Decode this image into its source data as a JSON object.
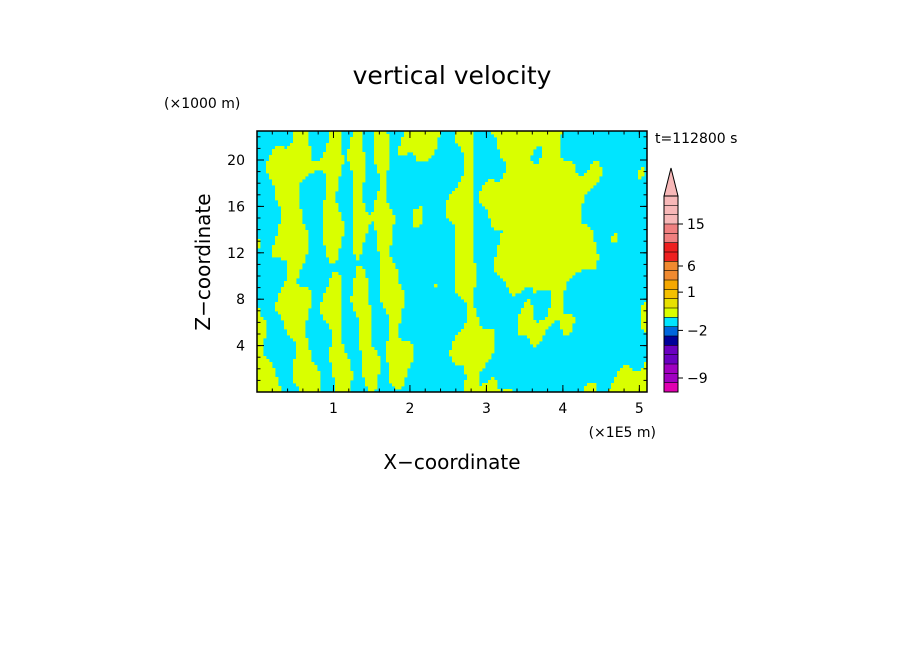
{
  "chart_data": {
    "type": "heatmap",
    "title": "vertical velocity",
    "xlabel": "X−coordinate",
    "ylabel": "Z−coordinate",
    "x_unit": "(×1E5 m)",
    "y_unit": "(×1000 m)",
    "time_label": "t=112800 s",
    "xlim": [
      0,
      5.1
    ],
    "ylim": [
      0,
      22.5
    ],
    "x_ticks": [
      1,
      2,
      3,
      4,
      5
    ],
    "y_ticks": [
      4,
      8,
      12,
      16,
      20
    ],
    "x_tick_labels": [
      "1",
      "2",
      "3",
      "4",
      "5"
    ],
    "y_tick_labels": [
      "4",
      "8",
      "12",
      "16",
      "20"
    ],
    "field_colors": {
      "negative": "#00e5ff",
      "positive": "#d9ff00"
    },
    "colorbar": {
      "labels": [
        {
          "value": 15,
          "text": "15"
        },
        {
          "value": 6,
          "text": "6"
        },
        {
          "value": 1,
          "text": "1"
        },
        {
          "value": -2,
          "text": "−2"
        },
        {
          "value": -9,
          "text": "−9"
        }
      ],
      "bins_top_to_bottom": [
        "#f7b8b8",
        "#f7b8b8",
        "#f7b8b8",
        "#f08080",
        "#f08080",
        "#ee2020",
        "#ee2020",
        "#f08a30",
        "#f08a30",
        "#f5a800",
        "#f5c000",
        "#e8e000",
        "#d9ff00",
        "#00e5ff",
        "#0066dd",
        "#000099",
        "#6a00c0",
        "#6a00c0",
        "#a000c0",
        "#a000c0",
        "#e000b0"
      ],
      "extend_top": true
    }
  }
}
